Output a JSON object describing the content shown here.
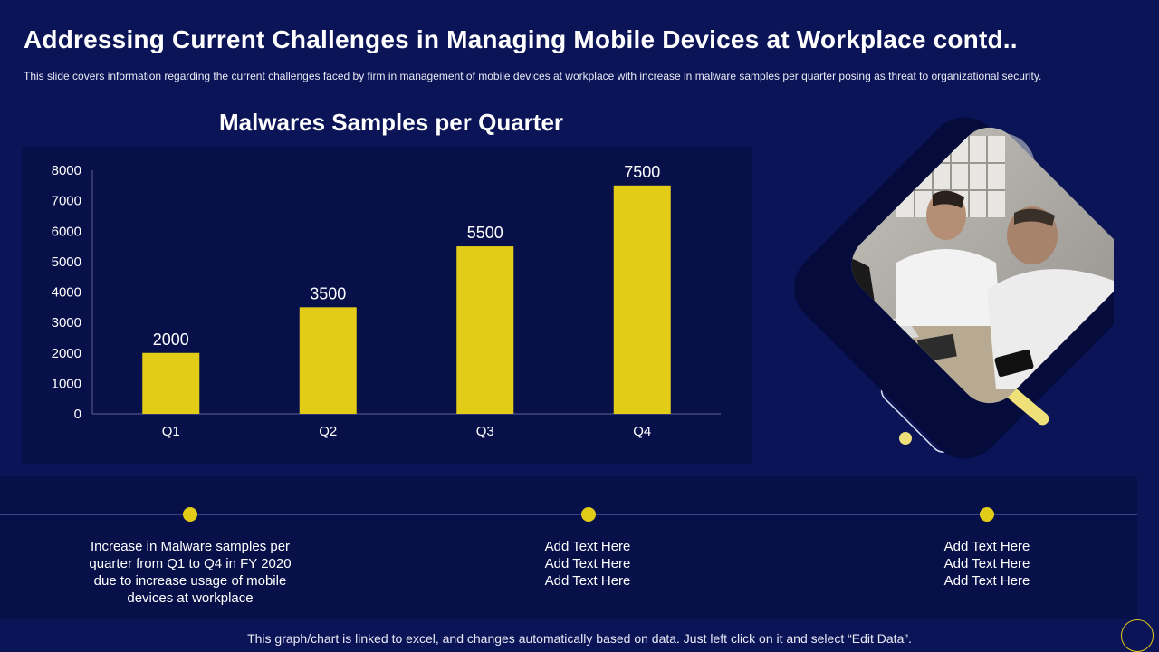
{
  "header": {
    "title": "Addressing Current Challenges in Managing Mobile Devices at Workplace contd..",
    "subtitle": "This slide covers information regarding the current challenges faced by firm in management of mobile devices at workplace with increase in malware samples per quarter posing as threat to organizational security."
  },
  "chart_data": {
    "type": "bar",
    "title": "Malwares Samples per Quarter",
    "categories": [
      "Q1",
      "Q2",
      "Q3",
      "Q4"
    ],
    "values": [
      2000,
      3500,
      5500,
      7500
    ],
    "ylim": [
      0,
      8000
    ],
    "yticks": [
      0,
      1000,
      2000,
      3000,
      4000,
      5000,
      6000,
      7000,
      8000
    ],
    "xlabel": "",
    "ylabel": "",
    "grid": false,
    "bar_color": "#e2cc17"
  },
  "timeline": {
    "items": [
      {
        "lines": [
          "Increase  in Malware samples per",
          "quarter from Q1 to Q4 in FY 2020",
          "due to increase usage of mobile",
          "devices at workplace"
        ]
      },
      {
        "lines": [
          "Add Text Here",
          "Add Text Here",
          "Add Text Here"
        ]
      },
      {
        "lines": [
          "Add Text Here",
          "Add Text Here",
          "Add Text Here"
        ]
      }
    ]
  },
  "footer": {
    "note": "This graph/chart is linked to excel, and changes automatically based on data. Just left click on it and select “Edit Data”."
  },
  "colors": {
    "background": "#0b1457",
    "panel": "#08104a",
    "accent": "#e2cc17"
  }
}
